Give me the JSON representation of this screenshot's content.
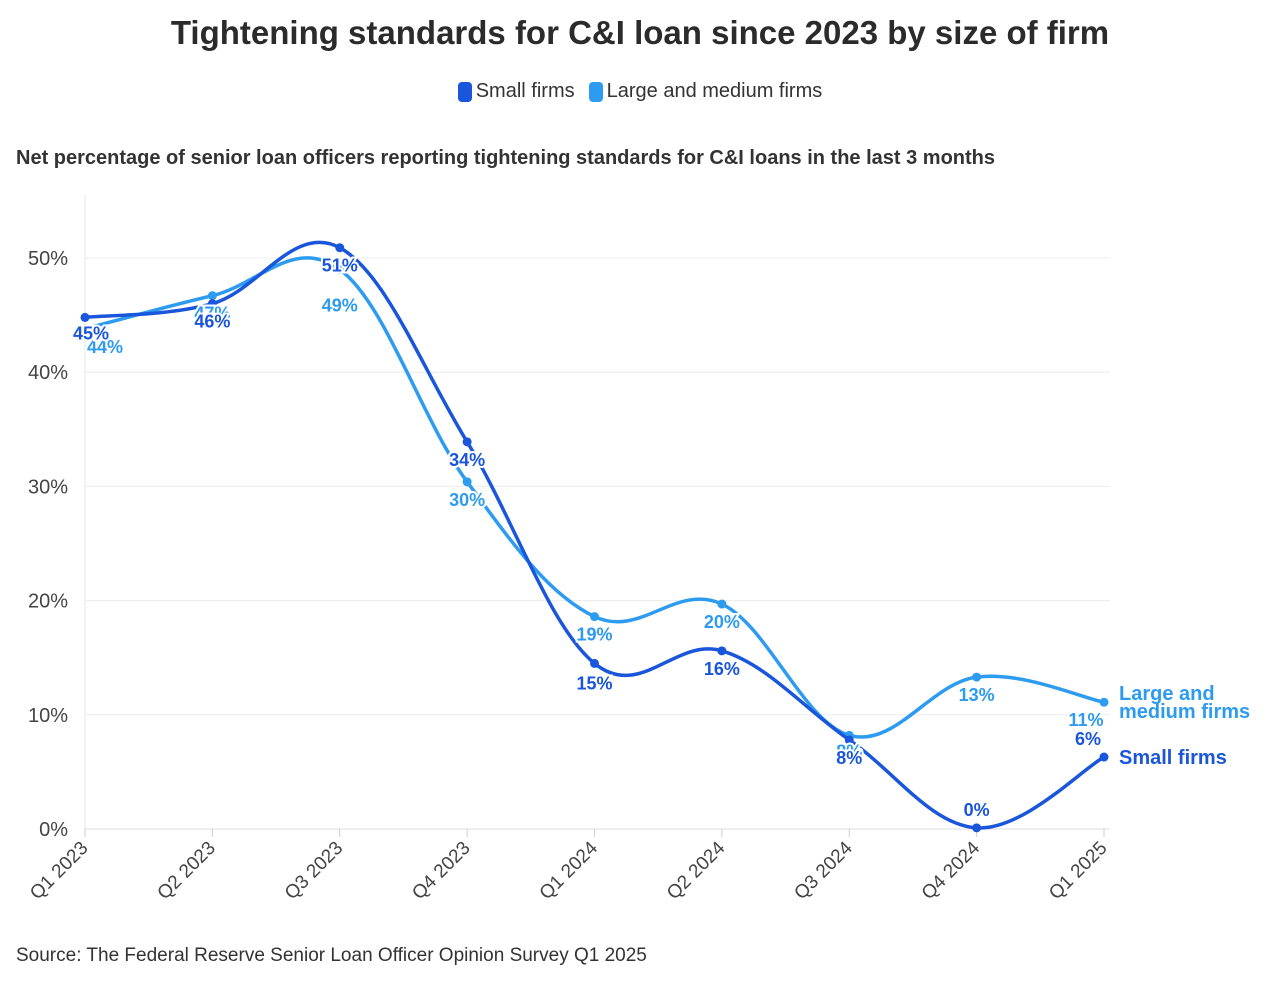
{
  "chart_data": {
    "type": "line",
    "title": "Tightening standards for C&I loan since 2023 by size of firm",
    "subtitle": "Net percentage of senior loan officers reporting tightening standards for C&I loans in the last 3 months",
    "source": "Source: The Federal Reserve Senior Loan Officer Opinion Survey Q1 2025",
    "categories": [
      "Q1 2023",
      "Q2 2023",
      "Q3 2023",
      "Q4 2023",
      "Q1 2024",
      "Q2 2024",
      "Q3 2024",
      "Q4 2024",
      "Q1 2025"
    ],
    "ylim": [
      0,
      50
    ],
    "yticks": [
      "0%",
      "10%",
      "20%",
      "30%",
      "40%",
      "50%"
    ],
    "legend_position": "top-center",
    "grid": "horizontal",
    "series": [
      {
        "name": "Small firms",
        "end_label": "Small firms",
        "color": "#1a56db",
        "values": [
          44.8,
          46.0,
          50.9,
          33.9,
          14.5,
          15.6,
          7.8,
          0.1,
          6.3
        ],
        "labels": [
          "45%",
          "46%",
          "51%",
          "34%",
          "15%",
          "16%",
          "8%",
          "0%",
          "6%"
        ]
      },
      {
        "name": "Large and medium firms",
        "end_label": [
          "Large and",
          "medium firms"
        ],
        "color": "#2d9bf0",
        "values": [
          43.8,
          46.7,
          49.0,
          30.4,
          18.6,
          19.7,
          8.2,
          13.3,
          11.1
        ],
        "labels": [
          "44%",
          "47%",
          "49%",
          "30%",
          "19%",
          "20%",
          "8%",
          "13%",
          "11%"
        ]
      }
    ]
  }
}
